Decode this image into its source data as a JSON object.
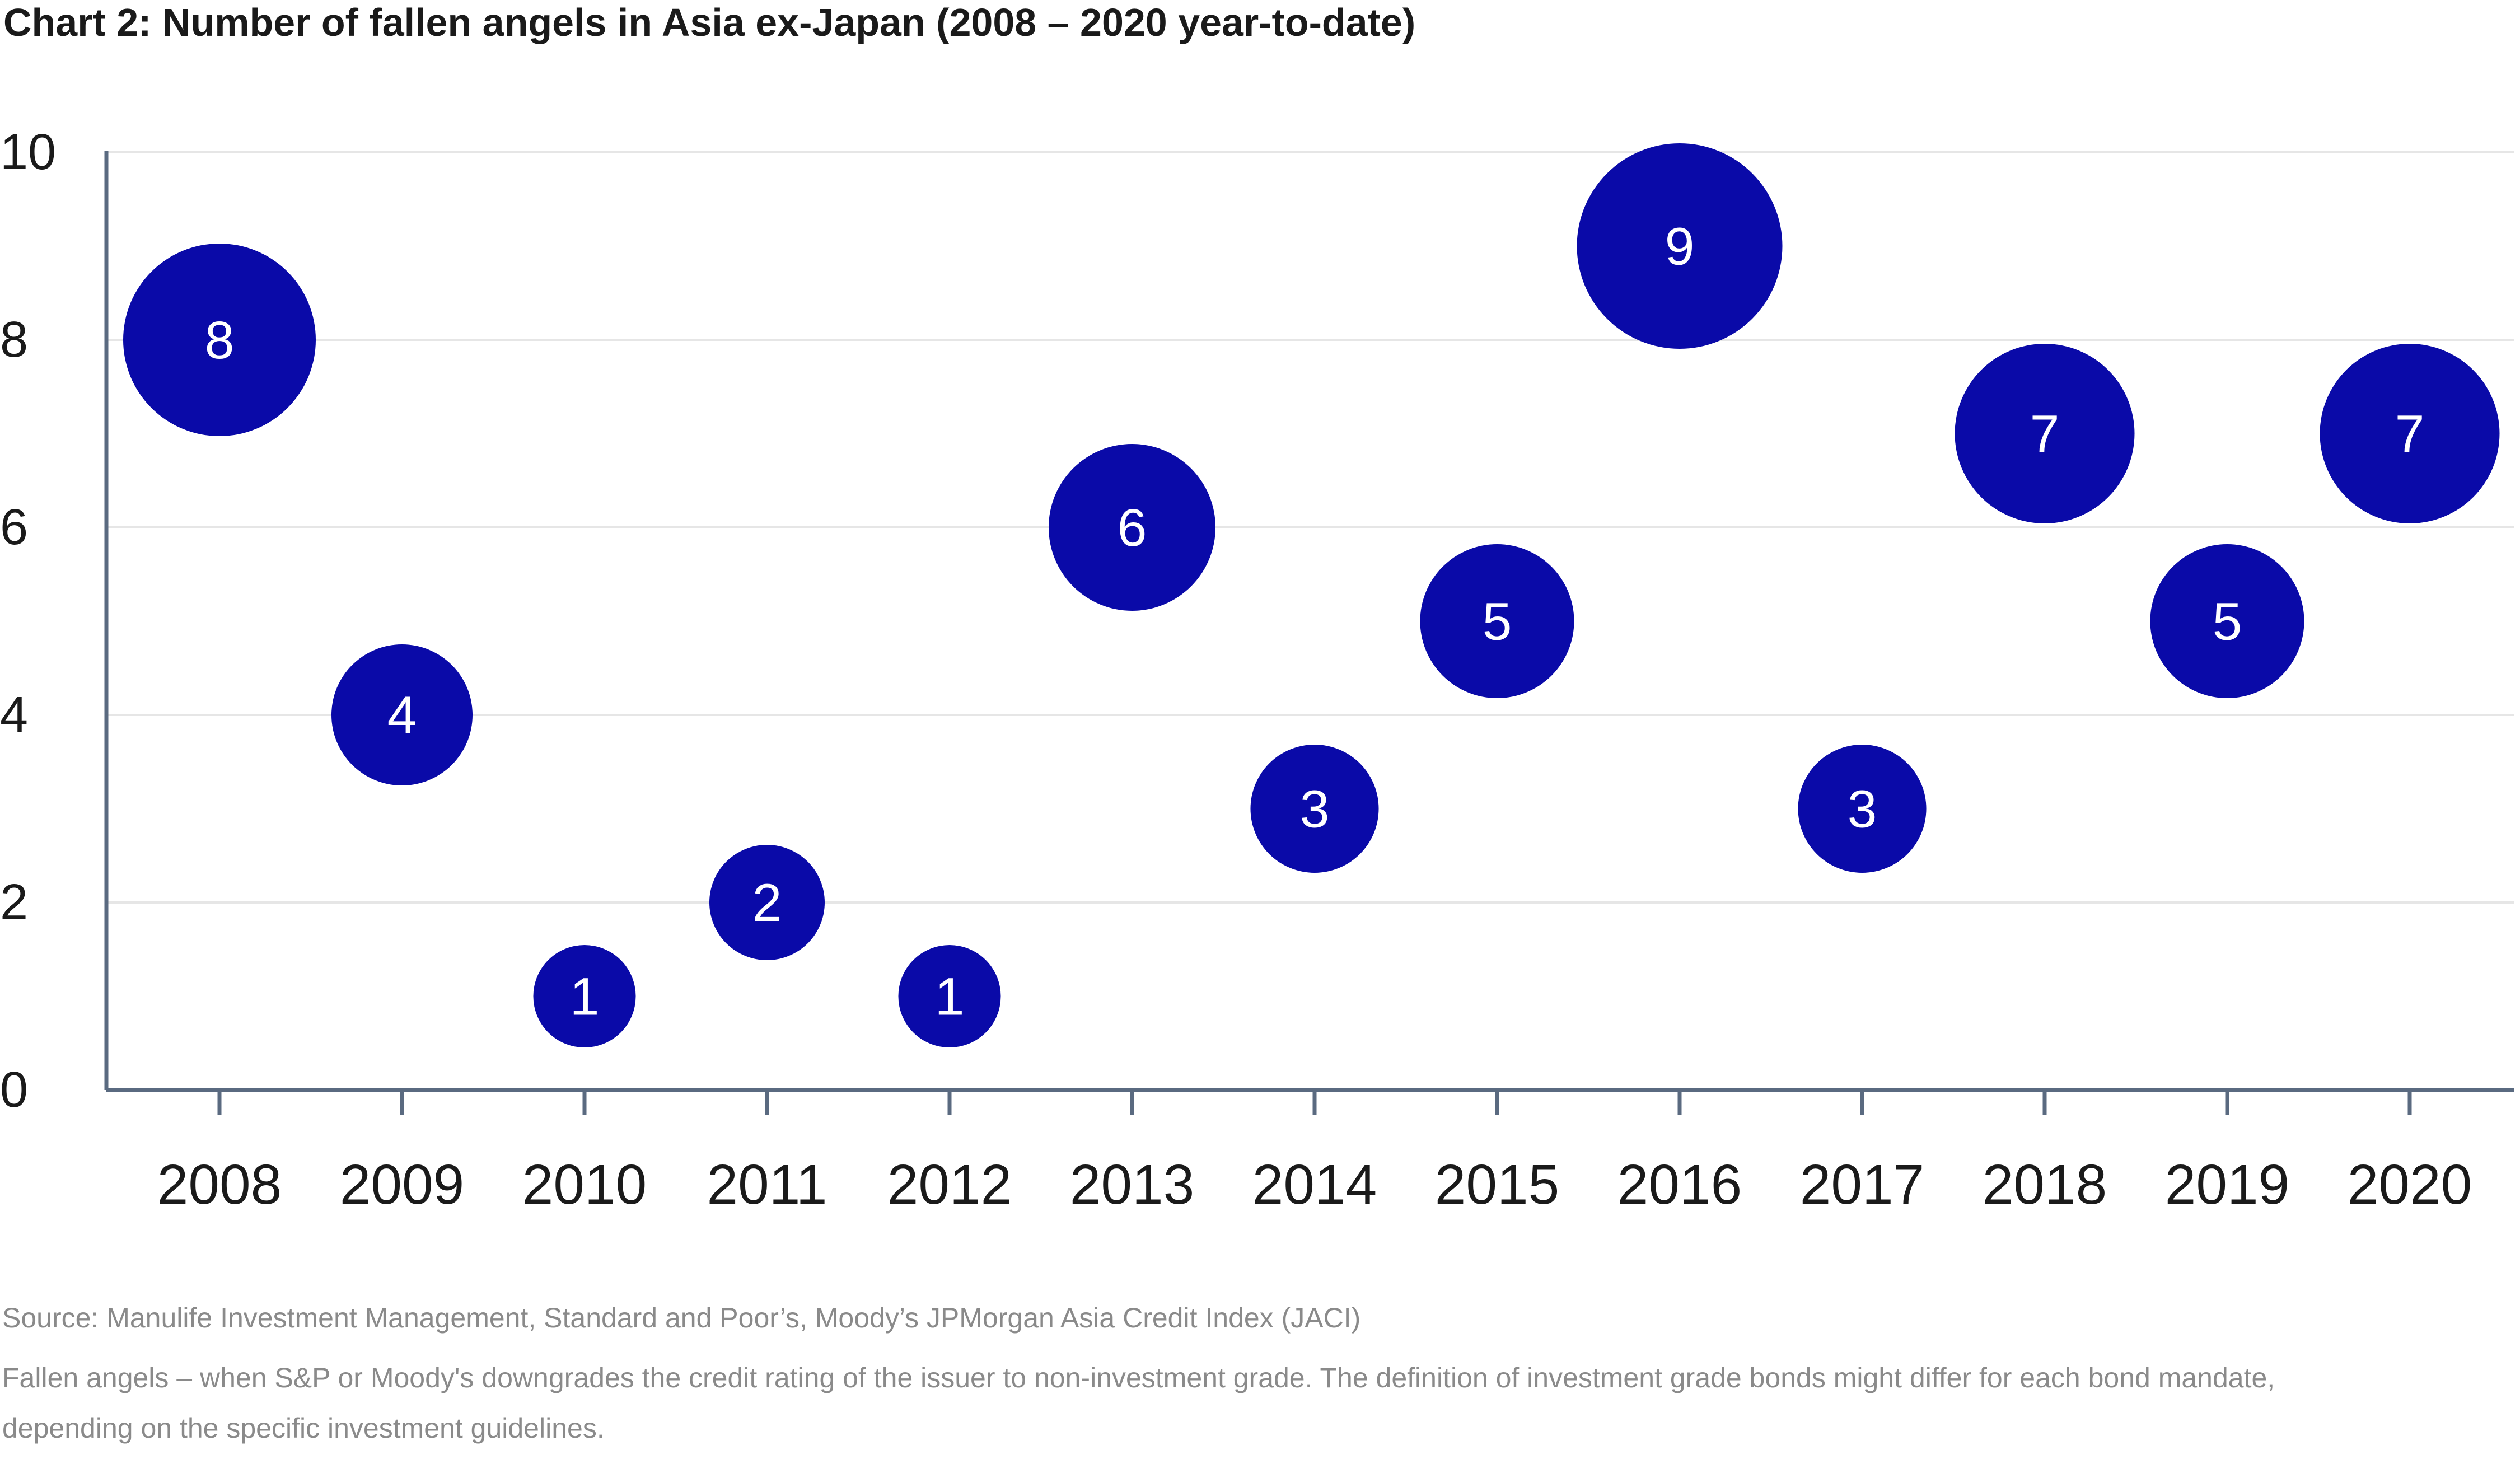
{
  "chart_data": {
    "type": "scatter",
    "title": "Chart 2: Number of fallen angels in Asia ex-Japan (2008 – 2020 year-to-date)",
    "xlabel": "",
    "ylabel": "",
    "categories": [
      "2008",
      "2009",
      "2010",
      "2011",
      "2012",
      "2013",
      "2014",
      "2015",
      "2016",
      "2017",
      "2018",
      "2019",
      "2020"
    ],
    "values": [
      8,
      4,
      1,
      2,
      1,
      6,
      3,
      5,
      9,
      3,
      7,
      5,
      7
    ],
    "data_labels": [
      "8",
      "4",
      "1",
      "2",
      "1",
      "6",
      "3",
      "5",
      "9",
      "3",
      "7",
      "5",
      "7"
    ],
    "ylim": [
      0,
      10
    ],
    "yticks": [
      "0",
      "2",
      "4",
      "6",
      "8",
      "10"
    ],
    "grid": true,
    "legend": "none",
    "marker_color": "#0a0aa8",
    "label_color": "#ffffff",
    "axis_color": "#5a6a80",
    "grid_color": "#e6e6e6"
  },
  "notes": {
    "source": "Source: Manulife Investment Management, Standard and Poor’s, Moody’s JPMorgan Asia Credit Index (JACI)",
    "definition_line1": "Fallen angels – when S&P or Moody's downgrades the credit rating of the issuer to non-investment grade. The definition of investment grade bonds might differ for each bond mandate,",
    "definition_line2": "depending on the specific investment guidelines."
  }
}
